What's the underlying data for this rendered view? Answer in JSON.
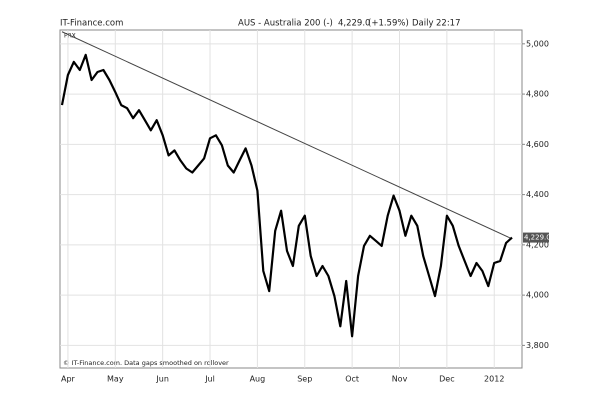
{
  "header": {
    "source": "IT-Finance.com",
    "symbol": "AUS - Australia 200 (-)",
    "last": "4,229.0",
    "change": "(+1.59%)",
    "interval": "Daily",
    "time": "22:17"
  },
  "chart_data": {
    "type": "line",
    "color": "#000000",
    "corner_label": "FRX",
    "footer": "© IT-Finance.com. Data gaps smoothed on rollover",
    "categories": [
      null,
      "Apr",
      null,
      null,
      null,
      null,
      null,
      null,
      null,
      "May",
      null,
      null,
      null,
      null,
      null,
      null,
      null,
      "Jun",
      null,
      null,
      null,
      null,
      null,
      null,
      null,
      "Jul",
      null,
      null,
      null,
      null,
      null,
      null,
      null,
      "Aug",
      null,
      null,
      null,
      null,
      null,
      null,
      null,
      "Sep",
      null,
      null,
      null,
      null,
      null,
      null,
      null,
      "Oct",
      null,
      null,
      null,
      null,
      null,
      null,
      null,
      "Nov",
      null,
      null,
      null,
      null,
      null,
      null,
      null,
      "Dec",
      null,
      null,
      null,
      null,
      null,
      null,
      null,
      "2012",
      null,
      null,
      null
    ],
    "values": [
      4756,
      4876,
      4928,
      4896,
      4956,
      4856,
      4888,
      4896,
      4856,
      4808,
      4756,
      4744,
      4704,
      4736,
      4696,
      4656,
      4696,
      4636,
      4556,
      4576,
      4536,
      4504,
      4488,
      4516,
      4544,
      4624,
      4636,
      4596,
      4516,
      4488,
      4536,
      4584,
      4516,
      4416,
      4096,
      4016,
      4256,
      4336,
      4176,
      4116,
      4276,
      4316,
      4156,
      4076,
      4116,
      4076,
      3996,
      3876,
      4056,
      3836,
      4076,
      4196,
      4236,
      4216,
      4196,
      4316,
      4396,
      4336,
      4236,
      4316,
      4276,
      4156,
      4076,
      3996,
      4116,
      4316,
      4276,
      4196,
      4136,
      4076,
      4128,
      4096,
      4036,
      4128,
      4136,
      4208,
      4229
    ],
    "trendline": {
      "values": [
        5048,
        4224
      ],
      "color": "#444444"
    },
    "last_marker": {
      "value": 4229,
      "label": "4,229.0"
    },
    "ylim": [
      3710,
      5055
    ],
    "yticks": [
      {
        "value": 3800,
        "label": "3,800"
      },
      {
        "value": 4000,
        "label": "4,000"
      },
      {
        "value": 4200,
        "label": "4,200"
      },
      {
        "value": 4400,
        "label": "4,400"
      },
      {
        "value": 4600,
        "label": "4,600"
      },
      {
        "value": 4800,
        "label": "4,800"
      },
      {
        "value": 5000,
        "label": "5,000"
      }
    ],
    "grid": true
  }
}
